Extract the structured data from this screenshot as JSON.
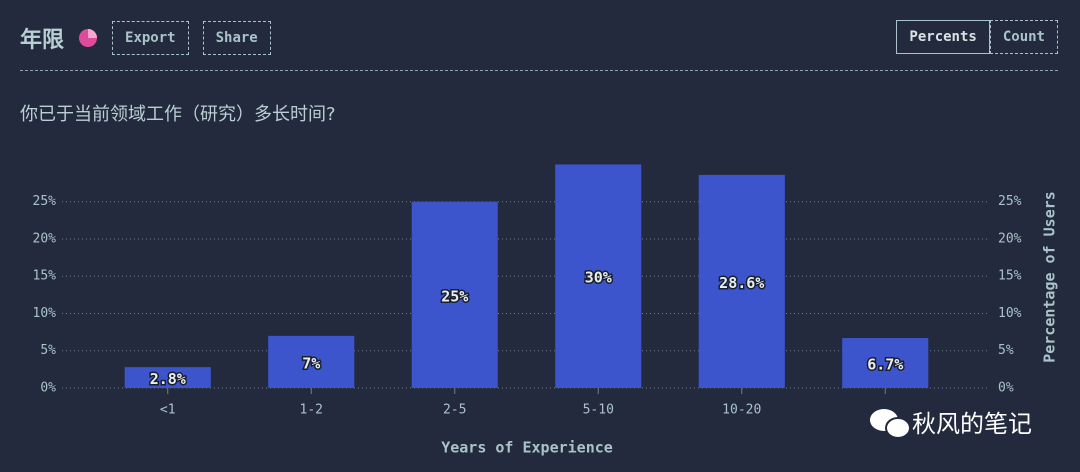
{
  "header": {
    "title": "年限",
    "buttons": [
      "Export",
      "Share"
    ],
    "toggle": [
      "Percents",
      "Count"
    ]
  },
  "question": "你已于当前领域工作（研究）多长时间?",
  "chart_data": {
    "type": "bar",
    "x_label": "Years of Experience",
    "y_label": "Percentage of Users",
    "categories": [
      "<1",
      "1-2",
      "2-5",
      "5-10",
      "10-20",
      null
    ],
    "values": [
      2.8,
      7,
      25,
      30,
      28.6,
      6.7
    ],
    "value_labels": [
      "2.8%",
      "7%",
      "25%",
      "30%",
      "28.6%",
      "6.7%"
    ],
    "color": "#3d55cc",
    "ylim": [
      0,
      31
    ],
    "yticks": [
      {
        "value": 0,
        "label": "0%"
      },
      {
        "value": 5,
        "label": "5%"
      },
      {
        "value": 10,
        "label": "10%"
      },
      {
        "value": 15,
        "label": "15%"
      },
      {
        "value": 20,
        "label": "20%"
      },
      {
        "value": 25,
        "label": "25%"
      }
    ],
    "grid": true
  },
  "watermark": "秋风的笔记"
}
